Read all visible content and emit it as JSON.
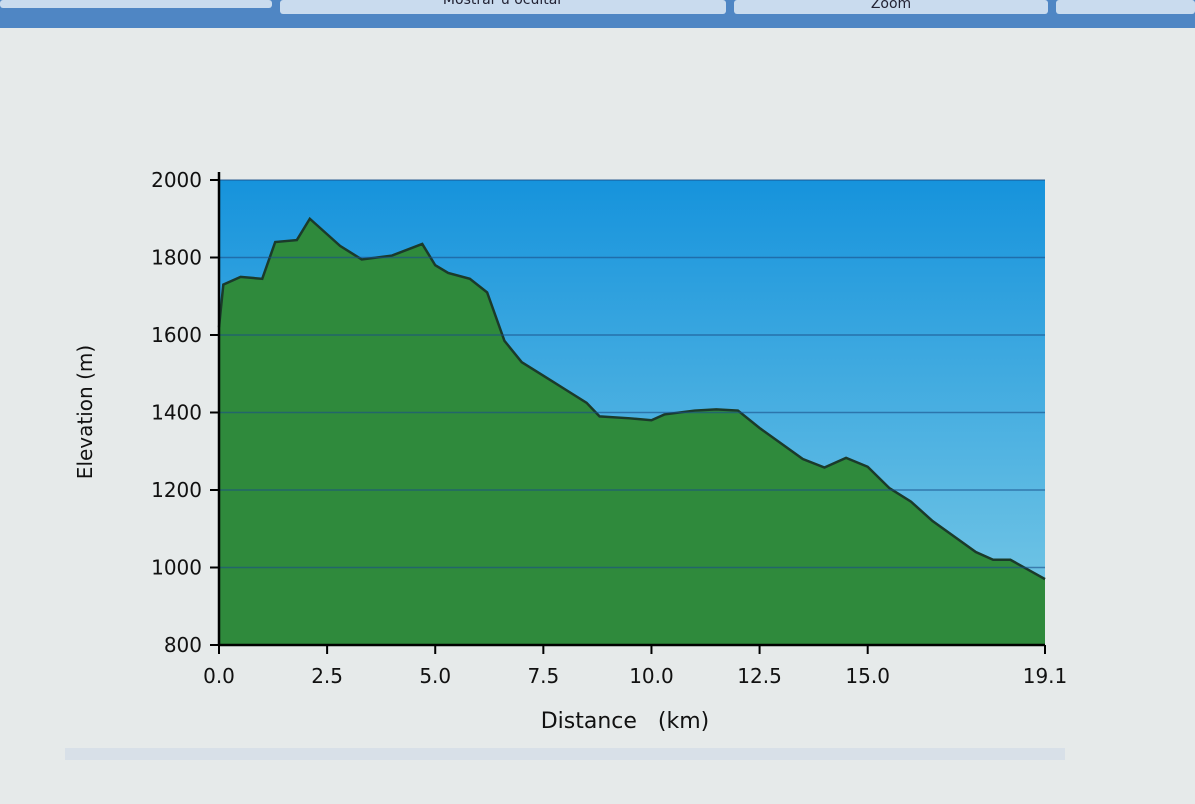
{
  "toolbar": {
    "buttons": [
      "Mostrar u ocultar",
      "Zoom"
    ]
  },
  "chart_data": {
    "type": "area",
    "x_label": "Distance   (km)",
    "y_label": "Elevation (m)",
    "x": [
      0,
      0.1,
      0.5,
      1.0,
      1.3,
      1.8,
      2.1,
      2.5,
      2.8,
      3.3,
      4.0,
      4.7,
      5.0,
      5.3,
      5.8,
      6.2,
      6.6,
      7.0,
      7.5,
      8.0,
      8.5,
      8.8,
      9.5,
      10.0,
      10.3,
      11.0,
      11.5,
      12.0,
      12.5,
      13.0,
      13.5,
      14.0,
      14.5,
      15.0,
      15.5,
      16.0,
      16.5,
      17.0,
      17.5,
      17.9,
      18.3,
      18.7,
      19.1
    ],
    "series": [
      {
        "color": "#2f8a3c",
        "values": [
          1620,
          1730,
          1750,
          1745,
          1840,
          1845,
          1900,
          1860,
          1830,
          1795,
          1805,
          1835,
          1780,
          1760,
          1745,
          1710,
          1585,
          1530,
          1495,
          1460,
          1425,
          1390,
          1385,
          1380,
          1395,
          1405,
          1408,
          1405,
          1360,
          1320,
          1280,
          1258,
          1283,
          1260,
          1205,
          1170,
          1120,
          1080,
          1040,
          1020,
          1020,
          995,
          970
        ]
      }
    ],
    "xlim": [
      0,
      19.1
    ],
    "xticks": [
      {
        "value": 0,
        "label": "0.0"
      },
      2.5,
      {
        "value": 5,
        "label": "5.0"
      },
      7.5,
      {
        "value": 10,
        "label": "10.0"
      },
      12.5,
      {
        "value": 15,
        "label": "15.0"
      },
      19.1
    ],
    "ylim": [
      800,
      2000
    ],
    "yticks": [
      800,
      1000,
      1200,
      1400,
      1600,
      1800,
      2000
    ],
    "grid": true
  }
}
